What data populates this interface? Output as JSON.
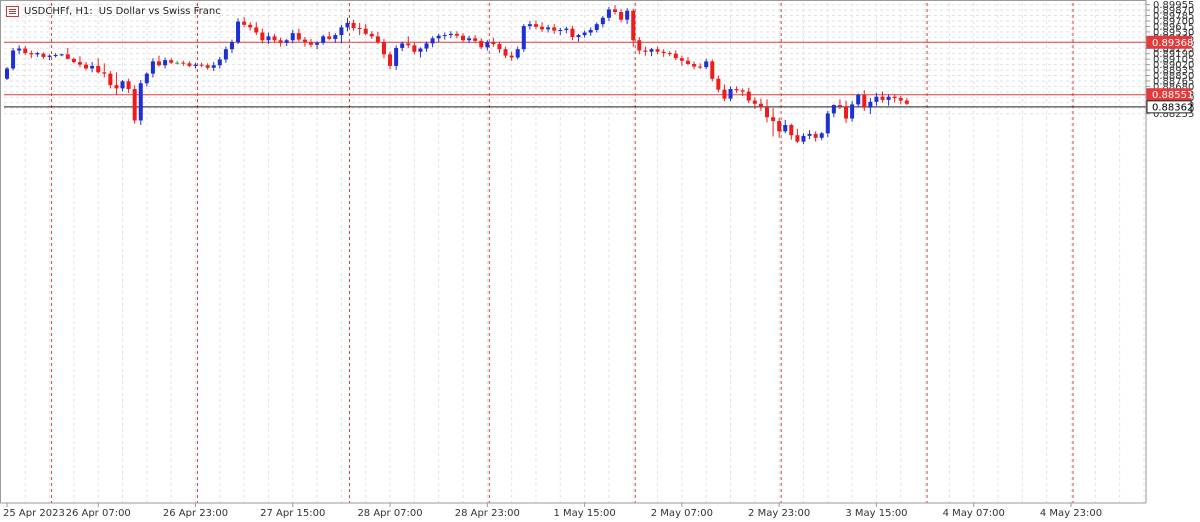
{
  "header": {
    "symbol": "USDCHFf, H1:",
    "description": "US Dollar vs Swiss Franc"
  },
  "colors": {
    "bull": "#1f2fd6",
    "bear": "#ee1c1c",
    "doji": "#2aa02a",
    "grid": "#e2e2e2",
    "separator": "#e33b3b",
    "level_line": "#e33b3b",
    "bid_line": "#222222",
    "axis": "#9a9a9a",
    "label_bg": "#e33b3b"
  },
  "chart_data": {
    "type": "candlestick",
    "timeframe": "H1",
    "ylim": [
      0.8219,
      0.8998
    ],
    "y_ticks": [
      "0.89955",
      "0.89870",
      "0.89785",
      "0.89700",
      "0.89615",
      "0.89530",
      "0.89445",
      "0.89360",
      "0.89275",
      "0.89190",
      "0.89105",
      "0.89020",
      "0.88935",
      "0.88850",
      "0.88765",
      "0.88680",
      "0.88595",
      "0.88510",
      "0.88425",
      "0.88340",
      "0.88255"
    ],
    "x_labels": [
      "25 Apr 2023",
      "26 Apr 07:00",
      "26 Apr 23:00",
      "27 Apr 15:00",
      "28 Apr 07:00",
      "28 Apr 23:00",
      "1 May 15:00",
      "2 May 07:00",
      "2 May 23:00",
      "3 May 15:00",
      "4 May 07:00",
      "4 May 23:00"
    ],
    "x_label_index": [
      0,
      15,
      31,
      47,
      63,
      79,
      95,
      111,
      127,
      143,
      159,
      175
    ],
    "separator_index": [
      7,
      31,
      56,
      79,
      103,
      127,
      151,
      175
    ],
    "horizontal_levels": [
      {
        "value": 0.89368,
        "label": "0.89368",
        "style": "level"
      },
      {
        "value": 0.88551,
        "label": "0.88551",
        "style": "level"
      },
      {
        "value": 0.88362,
        "label": "0.88362",
        "style": "bid"
      }
    ],
    "candles": [
      [
        0.888,
        0.8898,
        0.8878,
        0.8896
      ],
      [
        0.8896,
        0.8928,
        0.8893,
        0.8924
      ],
      [
        0.8924,
        0.8932,
        0.8918,
        0.8927
      ],
      [
        0.8927,
        0.8931,
        0.8917,
        0.892
      ],
      [
        0.892,
        0.8924,
        0.8912,
        0.8918
      ],
      [
        0.8918,
        0.8922,
        0.8914,
        0.892
      ],
      [
        0.8919,
        0.8921,
        0.8911,
        0.8914
      ],
      [
        0.8914,
        0.8918,
        0.8909,
        0.8916
      ],
      [
        0.8916,
        0.892,
        0.8913,
        0.8917
      ],
      [
        0.8917,
        0.8919,
        0.8915,
        0.8918
      ],
      [
        0.8918,
        0.8928,
        0.891,
        0.8911
      ],
      [
        0.8911,
        0.8913,
        0.8904,
        0.8906
      ],
      [
        0.8906,
        0.8915,
        0.8898,
        0.8902
      ],
      [
        0.8902,
        0.8906,
        0.8893,
        0.8896
      ],
      [
        0.8896,
        0.8906,
        0.889,
        0.89
      ],
      [
        0.89,
        0.8912,
        0.8888,
        0.889
      ],
      [
        0.889,
        0.8904,
        0.8882,
        0.8888
      ],
      [
        0.8888,
        0.8892,
        0.8865,
        0.887
      ],
      [
        0.887,
        0.889,
        0.8855,
        0.8865
      ],
      [
        0.8865,
        0.8878,
        0.886,
        0.8876
      ],
      [
        0.8876,
        0.888,
        0.8858,
        0.8864
      ],
      [
        0.8864,
        0.887,
        0.881,
        0.8815
      ],
      [
        0.8815,
        0.8878,
        0.8808,
        0.8873
      ],
      [
        0.8873,
        0.889,
        0.8868,
        0.8888
      ],
      [
        0.8888,
        0.8912,
        0.8882,
        0.8907
      ],
      [
        0.8907,
        0.8916,
        0.8899,
        0.8901
      ],
      [
        0.8901,
        0.8913,
        0.8896,
        0.8909
      ],
      [
        0.8909,
        0.8912,
        0.8903,
        0.8905
      ],
      [
        0.8905,
        0.8908,
        0.8902,
        0.8905
      ],
      [
        0.8905,
        0.8908,
        0.89,
        0.8904
      ],
      [
        0.8904,
        0.8907,
        0.8898,
        0.89
      ],
      [
        0.89,
        0.8905,
        0.8896,
        0.8902
      ],
      [
        0.8902,
        0.8905,
        0.8898,
        0.8901
      ],
      [
        0.8901,
        0.8904,
        0.8894,
        0.8897
      ],
      [
        0.8897,
        0.8906,
        0.8892,
        0.8901
      ],
      [
        0.8901,
        0.8914,
        0.8896,
        0.891
      ],
      [
        0.891,
        0.893,
        0.8905,
        0.8926
      ],
      [
        0.8926,
        0.8941,
        0.892,
        0.8937
      ],
      [
        0.8937,
        0.8974,
        0.8934,
        0.8969
      ],
      [
        0.8969,
        0.8976,
        0.8961,
        0.8964
      ],
      [
        0.8964,
        0.8968,
        0.8955,
        0.896
      ],
      [
        0.896,
        0.8968,
        0.8948,
        0.8952
      ],
      [
        0.8952,
        0.8958,
        0.8935,
        0.894
      ],
      [
        0.894,
        0.8952,
        0.8934,
        0.8946
      ],
      [
        0.8946,
        0.895,
        0.8936,
        0.894
      ],
      [
        0.894,
        0.8944,
        0.893,
        0.8936
      ],
      [
        0.8936,
        0.8942,
        0.8931,
        0.894
      ],
      [
        0.894,
        0.8956,
        0.8935,
        0.8951
      ],
      [
        0.8951,
        0.8958,
        0.8938,
        0.8941
      ],
      [
        0.8941,
        0.8945,
        0.893,
        0.8937
      ],
      [
        0.8937,
        0.8942,
        0.8929,
        0.8933
      ],
      [
        0.8933,
        0.8938,
        0.8926,
        0.8936
      ],
      [
        0.8936,
        0.8949,
        0.8933,
        0.8946
      ],
      [
        0.8946,
        0.8953,
        0.894,
        0.8942
      ],
      [
        0.8942,
        0.8951,
        0.8936,
        0.8948
      ],
      [
        0.8948,
        0.8964,
        0.8935,
        0.896
      ],
      [
        0.896,
        0.8975,
        0.8954,
        0.8967
      ],
      [
        0.8967,
        0.8972,
        0.8955,
        0.8959
      ],
      [
        0.8959,
        0.8967,
        0.8948,
        0.8958
      ],
      [
        0.8958,
        0.8965,
        0.8948,
        0.895
      ],
      [
        0.895,
        0.8954,
        0.8942,
        0.8946
      ],
      [
        0.8946,
        0.8953,
        0.8934,
        0.8937
      ],
      [
        0.8937,
        0.8942,
        0.8912,
        0.8918
      ],
      [
        0.8918,
        0.8922,
        0.8895,
        0.89
      ],
      [
        0.89,
        0.8932,
        0.8894,
        0.8928
      ],
      [
        0.8928,
        0.8938,
        0.8923,
        0.8935
      ],
      [
        0.8935,
        0.8946,
        0.8928,
        0.8932
      ],
      [
        0.8932,
        0.8936,
        0.8918,
        0.8922
      ],
      [
        0.8922,
        0.8929,
        0.8913,
        0.8927
      ],
      [
        0.8927,
        0.8938,
        0.8922,
        0.8935
      ],
      [
        0.8935,
        0.8946,
        0.8929,
        0.8943
      ],
      [
        0.8943,
        0.895,
        0.8937,
        0.8947
      ],
      [
        0.8947,
        0.8952,
        0.8941,
        0.8948
      ],
      [
        0.8948,
        0.8954,
        0.8943,
        0.895
      ],
      [
        0.895,
        0.8954,
        0.8943,
        0.8947
      ],
      [
        0.8947,
        0.8951,
        0.8937,
        0.894
      ],
      [
        0.894,
        0.8947,
        0.8936,
        0.8943
      ],
      [
        0.8943,
        0.8948,
        0.8936,
        0.8939
      ],
      [
        0.8939,
        0.8943,
        0.8926,
        0.8929
      ],
      [
        0.8929,
        0.894,
        0.8924,
        0.8937
      ],
      [
        0.8937,
        0.8944,
        0.893,
        0.8934
      ],
      [
        0.8934,
        0.8937,
        0.892,
        0.8926
      ],
      [
        0.8926,
        0.893,
        0.8912,
        0.8916
      ],
      [
        0.8916,
        0.8922,
        0.8908,
        0.8913
      ],
      [
        0.8913,
        0.893,
        0.891,
        0.8926
      ],
      [
        0.8926,
        0.8965,
        0.8922,
        0.8962
      ],
      [
        0.8962,
        0.897,
        0.8957,
        0.8965
      ],
      [
        0.8965,
        0.8971,
        0.8957,
        0.8961
      ],
      [
        0.8961,
        0.8968,
        0.8953,
        0.8957
      ],
      [
        0.8957,
        0.8964,
        0.8952,
        0.896
      ],
      [
        0.896,
        0.8965,
        0.895,
        0.8955
      ],
      [
        0.8955,
        0.8959,
        0.8948,
        0.8956
      ],
      [
        0.8956,
        0.8961,
        0.8951,
        0.8958
      ],
      [
        0.8958,
        0.8962,
        0.894,
        0.8945
      ],
      [
        0.8945,
        0.895,
        0.8938,
        0.8948
      ],
      [
        0.8948,
        0.8955,
        0.8944,
        0.8952
      ],
      [
        0.8952,
        0.896,
        0.8947,
        0.8956
      ],
      [
        0.8956,
        0.8968,
        0.8952,
        0.8965
      ],
      [
        0.8965,
        0.8978,
        0.896,
        0.8975
      ],
      [
        0.8975,
        0.8992,
        0.897,
        0.8988
      ],
      [
        0.8988,
        0.8995,
        0.898,
        0.8984
      ],
      [
        0.8984,
        0.8989,
        0.8968,
        0.8972
      ],
      [
        0.8972,
        0.899,
        0.8965,
        0.8986
      ],
      [
        0.8986,
        0.8989,
        0.893,
        0.894
      ],
      [
        0.894,
        0.8945,
        0.8918,
        0.8924
      ],
      [
        0.8924,
        0.893,
        0.8916,
        0.8922
      ],
      [
        0.8922,
        0.8928,
        0.8915,
        0.8926
      ],
      [
        0.8926,
        0.893,
        0.8918,
        0.8922
      ],
      [
        0.8922,
        0.8926,
        0.8914,
        0.892
      ],
      [
        0.892,
        0.8923,
        0.8915,
        0.8919
      ],
      [
        0.8919,
        0.8924,
        0.8909,
        0.8912
      ],
      [
        0.8912,
        0.8916,
        0.89,
        0.8908
      ],
      [
        0.8908,
        0.8914,
        0.8901,
        0.8903
      ],
      [
        0.8903,
        0.8907,
        0.8895,
        0.8899
      ],
      [
        0.8899,
        0.8904,
        0.8895,
        0.8898
      ],
      [
        0.8898,
        0.8911,
        0.8895,
        0.8907
      ],
      [
        0.8907,
        0.891,
        0.8876,
        0.888
      ],
      [
        0.888,
        0.8885,
        0.8859,
        0.8863
      ],
      [
        0.8863,
        0.8871,
        0.8845,
        0.8849
      ],
      [
        0.8849,
        0.8868,
        0.8845,
        0.8864
      ],
      [
        0.8864,
        0.8868,
        0.8858,
        0.8862
      ],
      [
        0.8862,
        0.8865,
        0.8853,
        0.886
      ],
      [
        0.886,
        0.8866,
        0.8842,
        0.8846
      ],
      [
        0.8846,
        0.8851,
        0.8833,
        0.8841
      ],
      [
        0.8841,
        0.8849,
        0.883,
        0.8836
      ],
      [
        0.8836,
        0.8848,
        0.8812,
        0.882
      ],
      [
        0.882,
        0.8834,
        0.879,
        0.8814
      ],
      [
        0.8814,
        0.8819,
        0.8788,
        0.8798
      ],
      [
        0.8798,
        0.8816,
        0.8795,
        0.8808
      ],
      [
        0.8808,
        0.881,
        0.8785,
        0.8792
      ],
      [
        0.8792,
        0.8802,
        0.878,
        0.8782
      ],
      [
        0.8782,
        0.8795,
        0.8778,
        0.8791
      ],
      [
        0.8791,
        0.88,
        0.8786,
        0.8794
      ],
      [
        0.8794,
        0.8798,
        0.8782,
        0.8788
      ],
      [
        0.8788,
        0.8797,
        0.8784,
        0.8795
      ],
      [
        0.8795,
        0.883,
        0.8789,
        0.8826
      ],
      [
        0.8826,
        0.884,
        0.882,
        0.8839
      ],
      [
        0.8839,
        0.8848,
        0.8833,
        0.8837
      ],
      [
        0.8837,
        0.8846,
        0.8811,
        0.8818
      ],
      [
        0.8818,
        0.8845,
        0.8813,
        0.884
      ],
      [
        0.884,
        0.8857,
        0.8836,
        0.8855
      ],
      [
        0.8855,
        0.8862,
        0.883,
        0.8835
      ],
      [
        0.8835,
        0.885,
        0.8825,
        0.8844
      ],
      [
        0.8844,
        0.8858,
        0.8838,
        0.8852
      ],
      [
        0.8852,
        0.886,
        0.8843,
        0.8847
      ],
      [
        0.8847,
        0.8856,
        0.8838,
        0.8852
      ],
      [
        0.8852,
        0.8856,
        0.8843,
        0.885
      ],
      [
        0.885,
        0.8853,
        0.884,
        0.8846
      ],
      [
        0.8846,
        0.885,
        0.8839,
        0.8841
      ]
    ]
  }
}
